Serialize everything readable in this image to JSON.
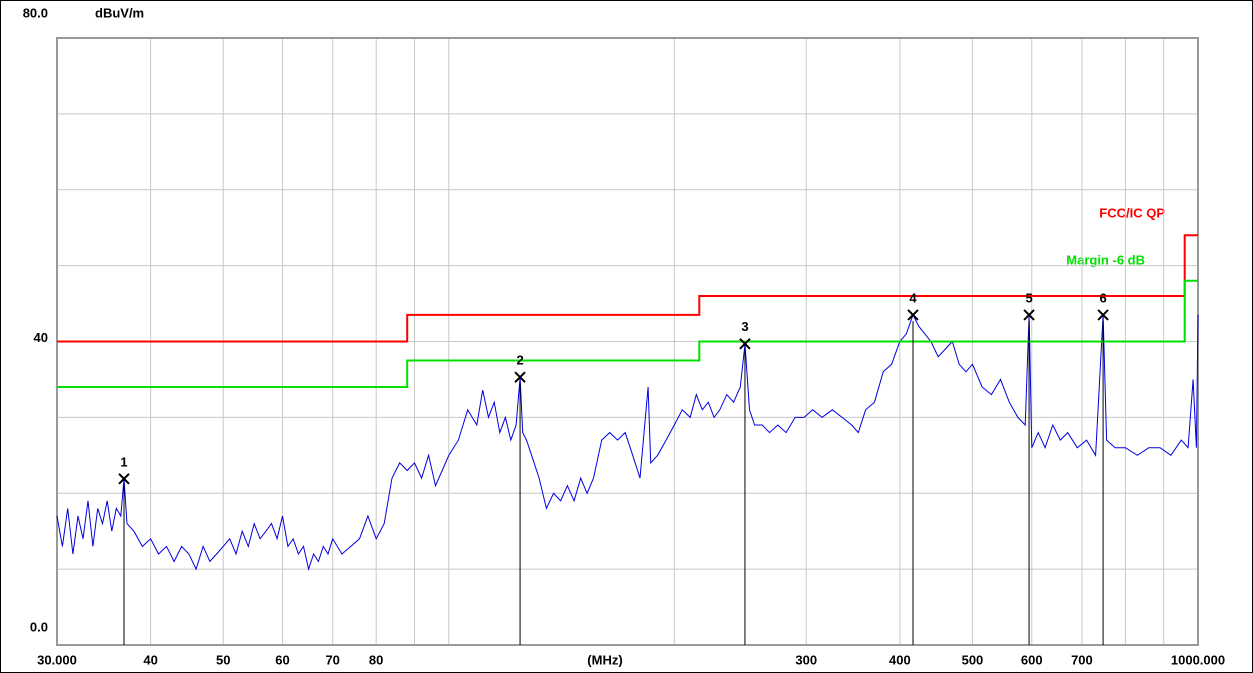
{
  "chart_data": {
    "type": "line",
    "y_unit": "dBuV/m",
    "x_unit": "(MHz)",
    "xscale": "log",
    "xlim": [
      30,
      1000
    ],
    "ylim": [
      0,
      80
    ],
    "xticks": [
      {
        "value": 30,
        "label": "30.000"
      },
      40,
      50,
      60,
      70,
      80,
      300,
      400,
      500,
      600,
      700,
      {
        "value": 1000,
        "label": "1000.000"
      }
    ],
    "xgrid": [
      40,
      50,
      60,
      70,
      80,
      90,
      100,
      200,
      300,
      400,
      500,
      600,
      700,
      800,
      900
    ],
    "yticks": [
      {
        "value": 80,
        "label": "80.0"
      },
      40,
      {
        "value": 0,
        "label": "0.0"
      }
    ],
    "ygrid": [
      10,
      20,
      30,
      40,
      50,
      60,
      70
    ],
    "grid": true,
    "series": [
      {
        "color": "#0000e0",
        "x": [
          30,
          30.5,
          31,
          31.5,
          32,
          32.5,
          33,
          33.5,
          34,
          34.5,
          35,
          35.5,
          36,
          36.5,
          36.86,
          37.2,
          38,
          39,
          40,
          41,
          42,
          43,
          44,
          45,
          46,
          47,
          48,
          49,
          50,
          51,
          52,
          53,
          54,
          55,
          56,
          57,
          58,
          59,
          60,
          61,
          62,
          63,
          64,
          65,
          66,
          67,
          68,
          69,
          70,
          72,
          74,
          76,
          78,
          80,
          82,
          84,
          86,
          88,
          90,
          92,
          94,
          96,
          98,
          100,
          103,
          106,
          109,
          111,
          113,
          115,
          117,
          119,
          121,
          123,
          124.5,
          125.5,
          127,
          129,
          132,
          135,
          138,
          141,
          144,
          147,
          150,
          153,
          156,
          160,
          164,
          168,
          172,
          176,
          180,
          184.5,
          186,
          190,
          195,
          200,
          205,
          210,
          214,
          218,
          222,
          226,
          230,
          235,
          240,
          245,
          248.5,
          252,
          256,
          262,
          268,
          275,
          282,
          290,
          298,
          306,
          315,
          325,
          335,
          345,
          352,
          360,
          370,
          380,
          390,
          400,
          408,
          416.5,
          424,
          432,
          440,
          450,
          460,
          470,
          480,
          490,
          500,
          515,
          530,
          545,
          560,
          575,
          588,
          595,
          600,
          612,
          625,
          640,
          655,
          670,
          690,
          710,
          730,
          747,
          755,
          775,
          800,
          830,
          860,
          890,
          920,
          950,
          970,
          985,
          995,
          1000
        ],
        "values": [
          17,
          13,
          18,
          12,
          17,
          14,
          19,
          13,
          18,
          16,
          19,
          15,
          18,
          17,
          21.9,
          16,
          15,
          13,
          14,
          12,
          13,
          11,
          13,
          12,
          10,
          13,
          11,
          12,
          13,
          14,
          12,
          15,
          13,
          16,
          14,
          15,
          16,
          14,
          17,
          13,
          14,
          12,
          13,
          10,
          12,
          11,
          13,
          12,
          14,
          12,
          13,
          14,
          17,
          14,
          16,
          22,
          24,
          23,
          24,
          22,
          25,
          21,
          23,
          25,
          27,
          31,
          29,
          33.6,
          30,
          32,
          28,
          30,
          27,
          29,
          35.3,
          28,
          27,
          25,
          22,
          18,
          20,
          19,
          21,
          19,
          22,
          20,
          22,
          27,
          28,
          27,
          28,
          25,
          22,
          34,
          24,
          25,
          27,
          29,
          31,
          30,
          33,
          31,
          32,
          30,
          31,
          33,
          32,
          34,
          39.7,
          31,
          29,
          29,
          28,
          29,
          28,
          30,
          30,
          31,
          30,
          31,
          30,
          29,
          28,
          31,
          32,
          36,
          37,
          40,
          41,
          43.5,
          42,
          41,
          40,
          38,
          39,
          40,
          37,
          36,
          37,
          34,
          33,
          35,
          32,
          30,
          29,
          43.5,
          26,
          28,
          26,
          29,
          27,
          28,
          26,
          27,
          25,
          43.5,
          27,
          26,
          26,
          25,
          26,
          26,
          25,
          27,
          26,
          35,
          26,
          43.5
        ]
      },
      {
        "name": "FCC/IC QP",
        "color": "#ff0000",
        "x": [
          30,
          88,
          88,
          216,
          216,
          960,
          960,
          1000
        ],
        "values": [
          40,
          40,
          43.5,
          43.5,
          46,
          46,
          54,
          54
        ]
      },
      {
        "name": "Margin -6 dB",
        "color": "#00e000",
        "x": [
          30,
          88,
          88,
          216,
          216,
          960,
          960,
          1000
        ],
        "values": [
          34,
          34,
          37.5,
          37.5,
          40,
          40,
          48,
          48
        ]
      }
    ],
    "markers": {
      "labels": [
        "1",
        "2",
        "3",
        "4",
        "5",
        "6"
      ],
      "x": [
        36.86,
        124.5,
        248.5,
        416.5,
        595,
        747
      ],
      "values": [
        21.9,
        35.3,
        39.7,
        43.5,
        43.5,
        43.5
      ]
    }
  }
}
